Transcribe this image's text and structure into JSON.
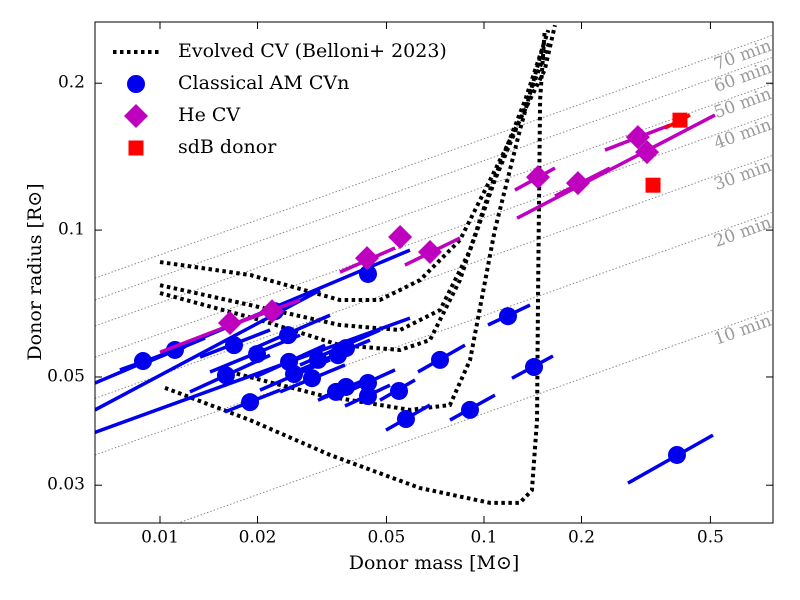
{
  "chart_data": {
    "type": "scatter",
    "xlabel": "Donor mass [M⊙]",
    "ylabel": "Donor radius [R⊙]",
    "xscale": "log",
    "yscale": "log",
    "xlim": [
      0.0063,
      0.78
    ],
    "ylim": [
      0.0251,
      0.267
    ],
    "xticks": [
      0.01,
      0.02,
      0.05,
      0.1,
      0.2,
      0.5
    ],
    "yticks": [
      0.03,
      0.05,
      0.1,
      0.2
    ],
    "legend": "upper left",
    "series": [
      {
        "name": "Evolved CV (Belloni+ 2023)",
        "type": "line",
        "style": "dotted",
        "color": "#000000",
        "tracks": [
          {
            "x": [
              0.01036,
              0.01896,
              0.0335,
              0.0635,
              0.1044,
              0.129,
              0.1406,
              0.1458,
              0.1468,
              0.149,
              0.154
            ],
            "y": [
              0.0475,
              0.0408,
              0.0346,
              0.0296,
              0.0276,
              0.0276,
              0.0293,
              0.0408,
              0.0719,
              0.1847,
              0.257
            ]
          },
          {
            "x": [
              0.01,
              0.019,
              0.0359,
              0.0477,
              0.0635,
              0.0843,
              0.1044,
              0.129,
              0.154,
              0.1656
            ],
            "y": [
              0.086,
              0.0809,
              0.0719,
              0.0719,
              0.079,
              0.0954,
              0.1266,
              0.168,
              0.213,
              0.263
            ]
          },
          {
            "x": [
              0.01,
              0.019,
              0.0359,
              0.0551,
              0.0732,
              0.0906,
              0.108,
              0.129,
              0.16
            ],
            "y": [
              0.0771,
              0.0702,
              0.0639,
              0.0624,
              0.0686,
              0.091,
              0.1266,
              0.168,
              0.245
            ]
          },
          {
            "x": [
              0.01,
              0.0204,
              0.0359,
              0.0551,
              0.0681,
              0.0843,
              0.1044,
              0.134,
              0.158
            ],
            "y": [
              0.0743,
              0.0654,
              0.0581,
              0.0568,
              0.0595,
              0.079,
              0.121,
              0.1847,
              0.257
            ]
          },
          {
            "x": [
              0.01644,
              0.0312,
              0.0591,
              0.0785,
              0.0906,
              0.108,
              0.129,
              0.154
            ],
            "y": [
              0.0512,
              0.0459,
              0.0428,
              0.0438,
              0.0542,
              0.1,
              0.16,
              0.245
            ]
          }
        ]
      },
      {
        "name": "Classical AM CVn",
        "type": "scatter",
        "marker": "circle",
        "color": "#0000ee",
        "x": [
          0.00886,
          0.01112,
          0.01692,
          0.02264,
          0.02484,
          0.01993,
          0.01598,
          0.02502,
          0.02592,
          0.02945,
          0.03074,
          0.03543,
          0.03751,
          0.01896,
          0.03493,
          0.03751,
          0.04385,
          0.04385,
          0.05467,
          0.04385,
          0.05744,
          0.07315,
          0.09054,
          0.1186,
          0.1427,
          0.3942
        ],
        "y": [
          0.0539,
          0.0568,
          0.0581,
          0.0682,
          0.0609,
          0.0557,
          0.0504,
          0.0537,
          0.0507,
          0.0497,
          0.0542,
          0.0554,
          0.0573,
          0.0444,
          0.0466,
          0.0477,
          0.0486,
          0.0457,
          0.0468,
          0.0813,
          0.041,
          0.0542,
          0.0428,
          0.0666,
          0.0524,
          0.0346
        ],
        "x_range": [
          [
            0.00752,
            0.01194
          ],
          [
            0.00931,
            0.01377
          ],
          [
            0.01329,
            0.02185
          ],
          [
            0.0063,
            0.03118
          ],
          [
            0.01896,
            0.03347
          ],
          [
            0.01427,
            0.02704
          ],
          [
            0.01237,
            0.02185
          ],
          [
            0.01965,
            0.03231
          ],
          [
            0.02035,
            0.03347
          ],
          [
            0.02347,
            0.03724
          ],
          [
            0.0063,
            0.0591
          ],
          [
            0.02704,
            0.04448
          ],
          [
            0.02704,
            0.04775
          ],
          [
            0.01587,
            0.02347
          ],
          [
            0.03074,
            0.04143
          ],
          [
            0.03118,
            0.04512
          ],
          [
            0.03594,
            0.05313
          ],
          [
            0.03724,
            0.05128
          ],
          [
            0.04775,
            0.06124
          ],
          [
            0.0063,
            0.0591
          ],
          [
            0.04984,
            0.06813
          ],
          [
            0.06256,
            0.08737
          ],
          [
            0.07855,
            0.1081
          ],
          [
            0.1029,
            0.1387
          ],
          [
            0.122,
            0.1633
          ],
          [
            0.2782,
            0.5091
          ]
        ],
        "y_range": [
          [
            0.0517,
            0.0576
          ],
          [
            0.0539,
            0.0601
          ],
          [
            0.0549,
            0.0624
          ],
          [
            0.0428,
            0.0753
          ],
          [
            0.0568,
            0.0669
          ],
          [
            0.0512,
            0.0609
          ],
          [
            0.0466,
            0.0554
          ],
          [
            0.05,
            0.0581
          ],
          [
            0.047,
            0.0542
          ],
          [
            0.0466,
            0.0529
          ],
          [
            0.0385,
            0.066
          ],
          [
            0.0517,
            0.0595
          ],
          [
            0.0529,
            0.0624
          ],
          [
            0.0424,
            0.047
          ],
          [
            0.0448,
            0.0488
          ],
          [
            0.0452,
            0.05
          ],
          [
            0.0459,
            0.0517
          ],
          [
            0.0436,
            0.0481
          ],
          [
            0.0448,
            0.0493
          ],
          [
            0.0486,
            0.091
          ],
          [
            0.0389,
            0.0438
          ],
          [
            0.0512,
            0.0581
          ],
          [
            0.0408,
            0.0459
          ],
          [
            0.0639,
            0.0702
          ],
          [
            0.0497,
            0.0552
          ],
          [
            0.0303,
            0.038
          ]
        ]
      },
      {
        "name": "He CV",
        "type": "scatter",
        "marker": "diamond",
        "color": "#bf00bf",
        "x": [
          0.01644,
          0.02217,
          0.04355,
          0.0551,
          0.06813,
          0.1468,
          0.195,
          0.2986,
          0.3186
        ],
        "y": [
          0.0645,
          0.0682,
          0.0876,
          0.0968,
          0.0902,
          0.1284,
          0.1248,
          0.1551,
          0.1445
        ],
        "x_range": [
          [
            0.01,
            0.02264
          ],
          [
            0.01766,
            0.02704
          ],
          [
            0.03594,
            0.05313
          ],
          null,
          [
            0.057,
            0.0843
          ],
          [
            0.1246,
            0.1656
          ],
          [
            0.1656,
            0.2448
          ],
          [
            0.2363,
            0.375
          ],
          [
            0.1265,
            0.5164
          ]
        ],
        "y_range": [
          [
            0.0562,
            0.0692
          ],
          [
            0.0648,
            0.0719
          ],
          [
            0.082,
            0.0919
          ],
          null,
          [
            0.0848,
            0.0963
          ],
          [
            0.1208,
            0.134
          ],
          [
            0.1174,
            0.134
          ],
          [
            0.1459,
            0.1641
          ],
          [
            0.1058,
            0.1721
          ]
        ]
      },
      {
        "name": "sdB donor",
        "type": "scatter",
        "marker": "square",
        "color": "#ff0000",
        "x": [
          0.4027,
          0.3325
        ],
        "y": [
          0.168,
          0.1236
        ],
        "x_range": [
          [
            0.362,
            0.4323
          ],
          null
        ],
        "y_range": [
          [
            0.1618,
            0.1721
          ],
          null
        ]
      }
    ],
    "period_lines": [
      {
        "label": "10 min",
        "x": [
          0.0063,
          0.78
        ],
        "y": [
          0.0218,
          0.0686
        ]
      },
      {
        "label": "20 min",
        "x": [
          0.0063,
          0.78
        ],
        "y": [
          0.0346,
          0.1089
        ]
      },
      {
        "label": "30 min",
        "x": [
          0.0063,
          0.78
        ],
        "y": [
          0.0452,
          0.1424
        ]
      },
      {
        "label": "40 min",
        "x": [
          0.0063,
          0.78
        ],
        "y": [
          0.0549,
          0.1729
        ]
      },
      {
        "label": "50 min",
        "x": [
          0.0063,
          0.78
        ],
        "y": [
          0.0636,
          0.2
        ]
      },
      {
        "label": "60 min",
        "x": [
          0.0063,
          0.78
        ],
        "y": [
          0.0719,
          0.2262
        ]
      },
      {
        "label": "70 min",
        "x": [
          0.0063,
          0.78
        ],
        "y": [
          0.0797,
          0.251
        ]
      }
    ]
  }
}
